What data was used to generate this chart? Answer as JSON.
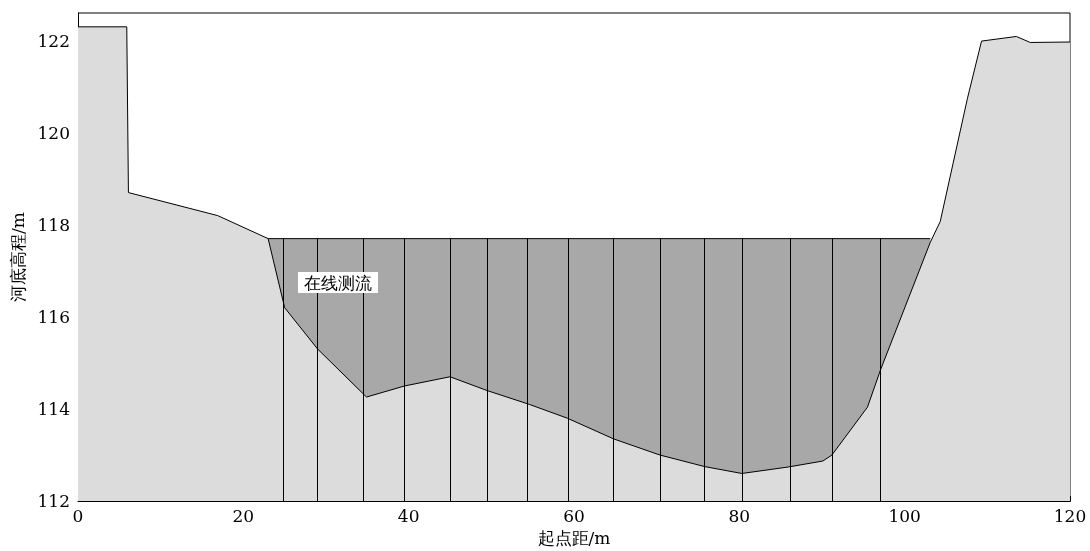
{
  "chart_data": {
    "type": "area",
    "xlabel": "起点距/m",
    "ylabel": "河底高程/m",
    "annotations": [
      "在线测流"
    ],
    "xlim": [
      0,
      120
    ],
    "xticks": [
      0,
      20,
      40,
      60,
      80,
      100,
      120
    ],
    "ylim": [
      112,
      122.6
    ],
    "yticks": [
      112,
      114,
      116,
      118,
      120,
      122
    ],
    "grid": false,
    "marker": "none",
    "series": [
      {
        "color": "#a8a8a8",
        "x": [
          23,
          103.1
        ],
        "values": [
          117.7,
          117.7
        ]
      },
      {
        "color": "#dcdcdc",
        "x": [
          0,
          5.9,
          6.1,
          16.9,
          23,
          25,
          29,
          34.9,
          39.5,
          45,
          49.5,
          54.6,
          59.2,
          64.8,
          70.4,
          75.8,
          80.3,
          85.9,
          90.1,
          91.2,
          95.5,
          97.1,
          103.1,
          104.3,
          107.6,
          109.3,
          113.5,
          115.2,
          120
        ],
        "values": [
          122.3,
          122.3,
          118.7,
          118.2,
          117.7,
          116.2,
          115.3,
          114.26,
          114.5,
          114.7,
          114.4,
          114.1,
          113.8,
          113.35,
          113.0,
          112.75,
          112.6,
          112.74,
          112.87,
          113.0,
          114.04,
          114.86,
          117.62,
          118.07,
          120.75,
          121.99,
          122.09,
          121.96,
          121.97
        ]
      }
    ],
    "ref_lines": [
      {
        "axis": "x",
        "value": 24.8
      },
      {
        "axis": "x",
        "value": 29
      },
      {
        "axis": "x",
        "value": 34.5
      },
      {
        "axis": "x",
        "value": 39.5
      },
      {
        "axis": "x",
        "value": 45
      },
      {
        "axis": "x",
        "value": 49.5
      },
      {
        "axis": "x",
        "value": 54.3
      },
      {
        "axis": "x",
        "value": 59.3
      },
      {
        "axis": "x",
        "value": 64.8
      },
      {
        "axis": "x",
        "value": 70.4
      },
      {
        "axis": "x",
        "value": 75.8
      },
      {
        "axis": "x",
        "value": 80.3
      },
      {
        "axis": "x",
        "value": 86.1
      },
      {
        "axis": "x",
        "value": 91.2
      },
      {
        "axis": "x",
        "value": 97.1
      }
    ]
  }
}
